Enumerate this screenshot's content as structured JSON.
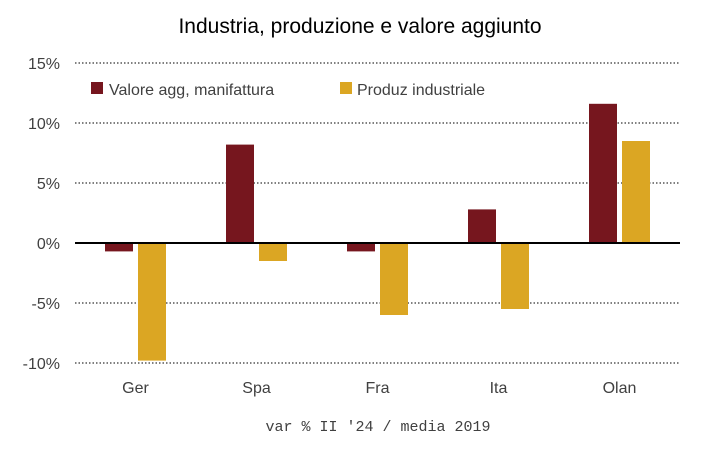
{
  "chart_data": {
    "type": "bar",
    "title": "Industria, produzione e valore aggiunto",
    "note": "var % II '24 / media 2019",
    "categories": [
      "Ger",
      "Spa",
      "Fra",
      "Ita",
      "Olan"
    ],
    "series": [
      {
        "name": "Valore agg, manifattura",
        "color": "#76161e",
        "values": [
          -0.7,
          8.2,
          -0.7,
          2.8,
          11.6
        ]
      },
      {
        "name": "Produz industriale",
        "color": "#dba623",
        "values": [
          -9.8,
          -1.5,
          -6.0,
          -5.5,
          8.5
        ]
      }
    ],
    "ylim": [
      -10,
      15
    ],
    "yticks": [
      15,
      10,
      5,
      0,
      -5,
      -10
    ],
    "ytick_labels": [
      "15%",
      "10%",
      "5%",
      "0%",
      "-5%",
      "-10%"
    ],
    "grid": "horizontal dotted",
    "legend_position": "top-left"
  }
}
